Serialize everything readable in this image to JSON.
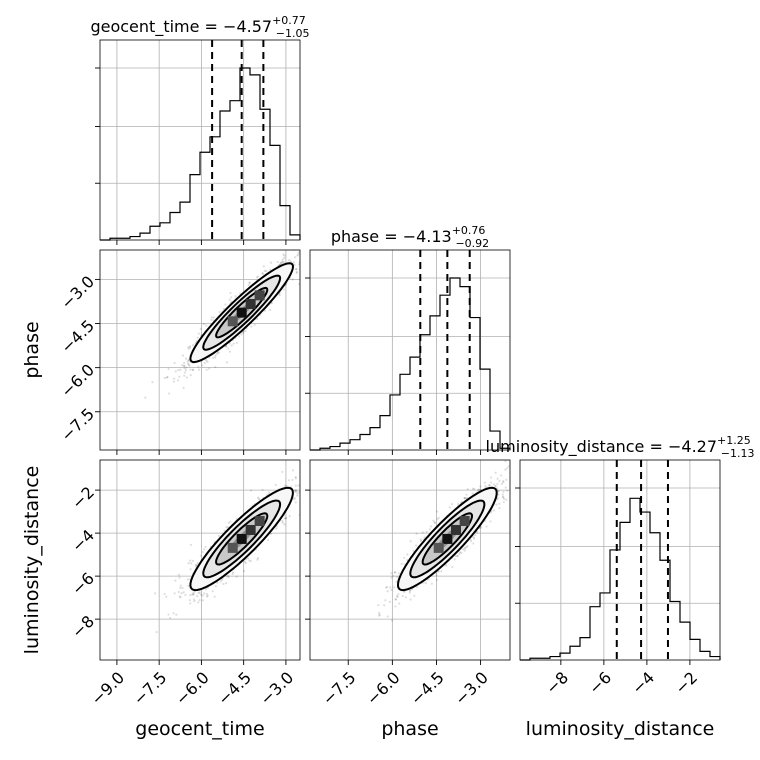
{
  "chart_data": {
    "type": "corner",
    "parameters": [
      "geocent_time",
      "phase",
      "luminosity_distance"
    ],
    "titles": [
      {
        "param": "geocent_time",
        "median": "−4.57",
        "plus": "+0.77",
        "minus": "−1.05"
      },
      {
        "param": "phase",
        "median": "−4.13",
        "plus": "+0.76",
        "minus": "−0.92"
      },
      {
        "param": "luminosity_distance",
        "median": "−4.27",
        "plus": "+1.25",
        "minus": "−1.13"
      }
    ],
    "ranges": {
      "geocent_time": [
        -9.6,
        -2.5
      ],
      "phase": [
        -8.8,
        -2.0
      ],
      "luminosity_distance": [
        -9.9,
        -0.6
      ]
    },
    "ticks": {
      "geocent_time": {
        "values": [
          -9.0,
          -7.5,
          -6.0,
          -4.5,
          -3.0
        ],
        "labels": [
          "−9.0",
          "−7.5",
          "−6.0",
          "−4.5",
          "−3.0"
        ]
      },
      "phase": {
        "values": [
          -7.5,
          -6.0,
          -4.5,
          -3.0
        ],
        "labels": [
          "−7.5",
          "−6.0",
          "−4.5",
          "−3.0"
        ]
      },
      "luminosity_distance": {
        "values": [
          -8,
          -6,
          -4,
          -2
        ],
        "labels": [
          "−8",
          "−6",
          "−4",
          "−2"
        ]
      }
    },
    "quantiles": {
      "geocent_time": [
        -5.62,
        -4.57,
        -3.8
      ],
      "phase": [
        -5.05,
        -4.13,
        -3.37
      ],
      "luminosity_distance": [
        -5.4,
        -4.27,
        -3.02
      ]
    },
    "histograms": {
      "geocent_time": {
        "edges": [
          -9.6,
          -9.245,
          -8.89,
          -8.535,
          -8.18,
          -7.825,
          -7.47,
          -7.115,
          -6.76,
          -6.405,
          -6.05,
          -5.695,
          -5.34,
          -4.985,
          -4.63,
          -4.275,
          -3.92,
          -3.565,
          -3.21,
          -2.855,
          -2.5
        ],
        "counts": [
          0,
          0.01,
          0.01,
          0.02,
          0.04,
          0.08,
          0.1,
          0.16,
          0.22,
          0.38,
          0.51,
          0.6,
          0.75,
          0.81,
          1.0,
          0.96,
          0.76,
          0.55,
          0.2,
          0.03
        ]
      },
      "phase": {
        "edges": [
          -8.8,
          -8.46,
          -8.12,
          -7.78,
          -7.44,
          -7.1,
          -6.76,
          -6.42,
          -6.08,
          -5.74,
          -5.4,
          -5.06,
          -4.72,
          -4.38,
          -4.04,
          -3.7,
          -3.36,
          -3.02,
          -2.68,
          -2.34,
          -2.0
        ],
        "counts": [
          0,
          0.01,
          0.02,
          0.04,
          0.06,
          0.09,
          0.13,
          0.2,
          0.32,
          0.44,
          0.54,
          0.67,
          0.78,
          0.9,
          1.0,
          0.95,
          0.77,
          0.47,
          0.11,
          0.01
        ]
      },
      "luminosity_distance": {
        "edges": [
          -9.9,
          -9.435,
          -8.97,
          -8.505,
          -8.04,
          -7.575,
          -7.11,
          -6.645,
          -6.18,
          -5.715,
          -5.25,
          -4.785,
          -4.32,
          -3.855,
          -3.39,
          -2.925,
          -2.46,
          -1.995,
          -1.53,
          -1.065,
          -0.6
        ],
        "counts": [
          0,
          0.01,
          0.01,
          0.02,
          0.04,
          0.08,
          0.13,
          0.31,
          0.39,
          0.64,
          0.8,
          0.94,
          0.86,
          0.74,
          0.58,
          0.34,
          0.22,
          0.12,
          0.05,
          0.02
        ]
      }
    },
    "correlations": {
      "phase_vs_geocent_time": 0.93,
      "luminosity_distance_vs_geocent_time": 0.9,
      "luminosity_distance_vs_phase": 0.9
    },
    "grid": true
  }
}
